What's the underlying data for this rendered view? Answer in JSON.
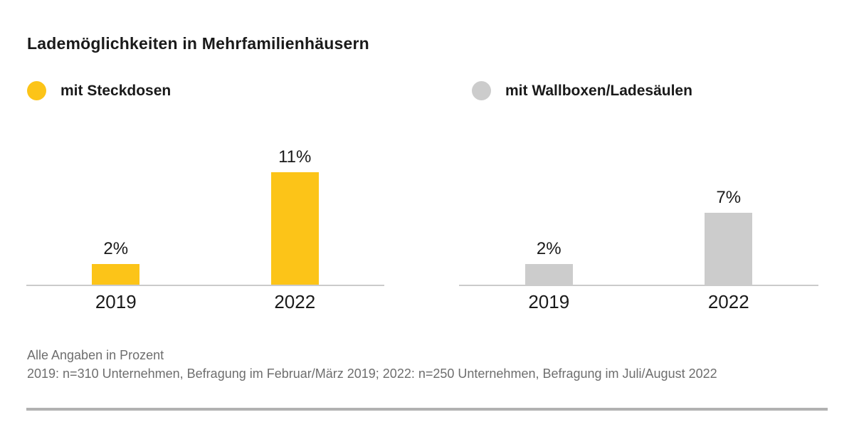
{
  "page": {
    "title": "Lademöglichkeiten in Mehrfamilienhäusern"
  },
  "legend": {
    "items": [
      {
        "label": "mit Steckdosen",
        "color": "#FCC418"
      },
      {
        "label": "mit Wallboxen/Ladesäulen",
        "color": "#CCCCCC"
      }
    ]
  },
  "chart_data": [
    {
      "type": "bar",
      "series_name": "mit Steckdosen",
      "categories": [
        "2019",
        "2022"
      ],
      "values": [
        2,
        11
      ],
      "value_labels": [
        "2%",
        "11%"
      ],
      "unit": "percent",
      "bar_color": "#FCC418",
      "baseline_color": "#CBCBCB",
      "ylim": [
        0,
        16
      ],
      "grid": false,
      "legend_position": "top-left"
    },
    {
      "type": "bar",
      "series_name": "mit Wallboxen/Ladesäulen",
      "categories": [
        "2019",
        "2022"
      ],
      "values": [
        2,
        7
      ],
      "value_labels": [
        "2%",
        "7%"
      ],
      "unit": "percent",
      "bar_color": "#CCCCCC",
      "baseline_color": "#CBCBCB",
      "ylim": [
        0,
        16
      ],
      "grid": false,
      "legend_position": "top-right"
    }
  ],
  "footnotes": {
    "line1": "Alle Angaben in Prozent",
    "line2": "2019: n=310 Unternehmen, Befragung im Februar/März 2019; 2022: n=250 Unternehmen, Befragung im Juli/August 2022"
  },
  "colors": {
    "text": "#1A1A1A",
    "footnote_text": "#6E6E6E",
    "divider": "#B2B2B2",
    "background": "#FFFFFF"
  }
}
